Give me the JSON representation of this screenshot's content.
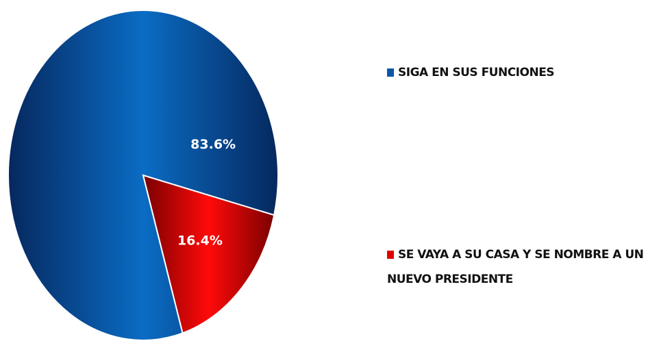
{
  "chart_data": {
    "type": "pie",
    "categories": [
      "SIGA EN SUS FUNCIONES",
      "SE VAYA A SU CASA Y SE NOMBRE A UN NUEVO PRESIDENTE"
    ],
    "values": [
      83.6,
      16.4
    ],
    "value_labels": [
      "83.6%",
      "16.4%"
    ],
    "colors": [
      "#0a56a8",
      "#e00000"
    ]
  }
}
